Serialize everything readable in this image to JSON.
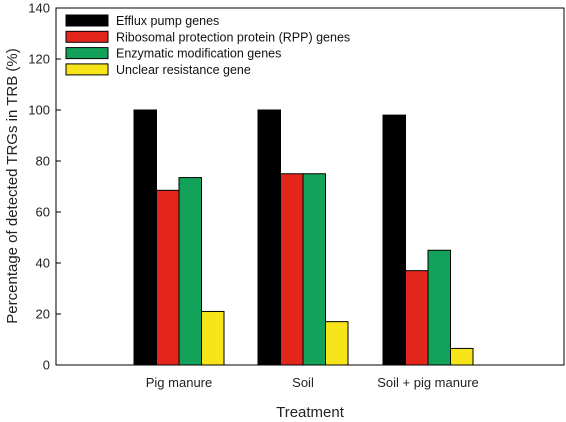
{
  "chart_data": {
    "type": "bar",
    "title": "",
    "xlabel": "Treatment",
    "ylabel": "Percentage of detected TRGs in TRB (%)",
    "ylim": [
      0,
      140
    ],
    "yticks": [
      0,
      20,
      40,
      60,
      80,
      100,
      120,
      140
    ],
    "categories": [
      "Pig manure",
      "Soil",
      "Soil + pig manure"
    ],
    "series": [
      {
        "name": "Efflux pump genes",
        "color": "#000000",
        "values": [
          100,
          100,
          98
        ]
      },
      {
        "name": "Ribosomal protection protein (RPP) genes",
        "color": "#e3261c",
        "values": [
          68.5,
          75,
          37
        ]
      },
      {
        "name": "Enzymatic modification genes",
        "color": "#12a259",
        "values": [
          73.5,
          75,
          45
        ]
      },
      {
        "name": "Unclear resistance gene",
        "color": "#f7e51a",
        "values": [
          21,
          17,
          6.5
        ]
      }
    ],
    "legend_position": "top-left",
    "grid": false
  }
}
